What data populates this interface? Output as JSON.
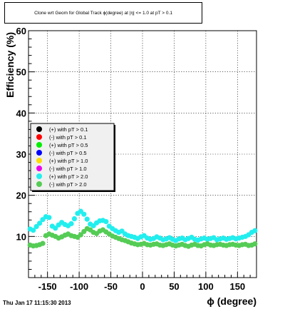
{
  "page": {
    "title": "Clone wrt Geom for Global Track ϕ(degree) at |η| <= 1.0 at pT > 0.1",
    "footer": "Thu Jan 17 11:15:30 2013"
  },
  "colors": {
    "frame": "#000000",
    "grid": "#000000",
    "legend_bg": "#f0f0f0"
  },
  "chart_data": {
    "type": "scatter",
    "xlabel": "ϕ (degree)",
    "ylabel": "Efficiency (%)",
    "xlim": [
      -180,
      180
    ],
    "ylim": [
      0,
      60
    ],
    "xticks": [
      -150,
      -100,
      -50,
      0,
      50,
      100,
      150
    ],
    "xtick_labels": [
      "-150",
      "-100",
      "-50",
      "0",
      "50",
      "100",
      "150"
    ],
    "yticks": [
      10,
      20,
      30,
      40,
      50,
      60
    ],
    "ytick_labels": [
      "10",
      "20",
      "30",
      "40",
      "50",
      "60"
    ],
    "grid": true,
    "legend_position": "left-middle",
    "x": [
      -177.5,
      -172.5,
      -167.5,
      -162.5,
      -157.5,
      -152.5,
      -147.5,
      -142.5,
      -137.5,
      -132.5,
      -127.5,
      -122.5,
      -117.5,
      -112.5,
      -107.5,
      -102.5,
      -97.5,
      -92.5,
      -87.5,
      -82.5,
      -77.5,
      -72.5,
      -67.5,
      -62.5,
      -57.5,
      -52.5,
      -47.5,
      -42.5,
      -37.5,
      -32.5,
      -27.5,
      -22.5,
      -17.5,
      -12.5,
      -7.5,
      -2.5,
      2.5,
      7.5,
      12.5,
      17.5,
      22.5,
      27.5,
      32.5,
      37.5,
      42.5,
      47.5,
      52.5,
      57.5,
      62.5,
      67.5,
      72.5,
      77.5,
      82.5,
      87.5,
      92.5,
      97.5,
      102.5,
      107.5,
      112.5,
      117.5,
      122.5,
      127.5,
      132.5,
      137.5,
      142.5,
      147.5,
      152.5,
      157.5,
      162.5,
      167.5,
      172.5,
      177.5
    ],
    "series": [
      {
        "name": "(+) with pT > 0.1",
        "color": "#000000",
        "values": [
          null,
          null,
          null,
          null,
          null,
          null,
          null,
          null,
          null,
          null,
          null,
          null,
          null,
          null,
          null,
          null,
          null,
          null,
          null,
          null,
          null,
          null,
          null,
          null,
          null,
          null,
          null,
          null,
          null,
          null,
          null,
          null,
          null,
          null,
          null,
          null,
          null,
          null,
          null,
          null,
          null,
          null,
          null,
          null,
          null,
          null,
          null,
          null,
          null,
          null,
          null,
          null,
          null,
          null,
          null,
          null,
          null,
          null,
          null,
          null,
          null,
          null,
          null,
          null,
          null,
          null,
          null,
          null,
          null,
          null,
          null,
          null
        ]
      },
      {
        "name": "(-) with pT > 0.1",
        "color": "#ff0000",
        "values": [
          null,
          null,
          null,
          null,
          null,
          null,
          null,
          null,
          null,
          null,
          null,
          null,
          null,
          null,
          null,
          null,
          null,
          null,
          null,
          null,
          null,
          null,
          null,
          null,
          null,
          null,
          null,
          null,
          null,
          null,
          null,
          null,
          null,
          null,
          null,
          null,
          null,
          null,
          null,
          null,
          null,
          null,
          null,
          null,
          null,
          null,
          null,
          null,
          null,
          null,
          null,
          null,
          null,
          null,
          null,
          null,
          null,
          null,
          null,
          null,
          null,
          null,
          null,
          null,
          null,
          null,
          null,
          null,
          null,
          null,
          null,
          null
        ]
      },
      {
        "name": "(+) with pT > 0.5",
        "color": "#00ee00",
        "values": [
          null,
          null,
          null,
          null,
          null,
          null,
          null,
          null,
          null,
          null,
          null,
          null,
          null,
          null,
          null,
          null,
          null,
          null,
          null,
          null,
          null,
          null,
          null,
          null,
          null,
          null,
          null,
          null,
          null,
          null,
          null,
          null,
          null,
          null,
          null,
          null,
          null,
          null,
          null,
          null,
          null,
          null,
          null,
          null,
          null,
          null,
          null,
          null,
          null,
          null,
          null,
          null,
          null,
          null,
          null,
          null,
          null,
          null,
          null,
          null,
          null,
          null,
          null,
          null,
          null,
          null,
          null,
          null,
          null,
          null,
          null,
          null
        ]
      },
      {
        "name": "(-) with pT > 0.5",
        "color": "#0000ff",
        "values": [
          null,
          null,
          null,
          null,
          null,
          null,
          null,
          null,
          null,
          null,
          null,
          null,
          null,
          null,
          null,
          null,
          null,
          null,
          null,
          null,
          null,
          null,
          null,
          null,
          null,
          null,
          null,
          null,
          null,
          null,
          null,
          null,
          null,
          null,
          null,
          null,
          null,
          null,
          null,
          null,
          null,
          null,
          null,
          null,
          null,
          null,
          null,
          null,
          null,
          null,
          null,
          null,
          null,
          null,
          null,
          null,
          null,
          null,
          null,
          null,
          null,
          null,
          null,
          null,
          null,
          null,
          null,
          null,
          null,
          null,
          null,
          null
        ]
      },
      {
        "name": "(+) with pT > 1.0",
        "color": "#ffdd00",
        "values": [
          null,
          null,
          null,
          null,
          null,
          null,
          null,
          null,
          null,
          null,
          null,
          null,
          null,
          null,
          null,
          null,
          null,
          null,
          null,
          null,
          null,
          null,
          null,
          null,
          null,
          null,
          null,
          null,
          null,
          null,
          null,
          null,
          null,
          null,
          null,
          null,
          null,
          null,
          null,
          null,
          null,
          null,
          null,
          null,
          null,
          null,
          null,
          null,
          null,
          null,
          null,
          null,
          null,
          null,
          null,
          null,
          null,
          null,
          null,
          null,
          null,
          null,
          null,
          null,
          null,
          null,
          null,
          null,
          null,
          null,
          null,
          null
        ]
      },
      {
        "name": "(-) with pT > 1.0",
        "color": "#ee00ee",
        "values": [
          null,
          null,
          null,
          null,
          null,
          null,
          null,
          null,
          null,
          null,
          null,
          null,
          null,
          null,
          null,
          null,
          null,
          null,
          null,
          null,
          null,
          null,
          null,
          null,
          null,
          null,
          null,
          null,
          null,
          null,
          null,
          null,
          null,
          null,
          null,
          null,
          null,
          null,
          null,
          null,
          null,
          null,
          null,
          null,
          null,
          null,
          null,
          null,
          null,
          null,
          null,
          null,
          null,
          null,
          null,
          null,
          null,
          null,
          null,
          null,
          null,
          null,
          null,
          null,
          null,
          null,
          null,
          null,
          null,
          null,
          null,
          null
        ]
      },
      {
        "name": "(+) with pT > 2.0",
        "color": "#22eeee",
        "values": [
          11.8,
          11.5,
          12.4,
          13.2,
          14.1,
          14.8,
          14.6,
          12.5,
          12.0,
          12.8,
          13.4,
          12.9,
          12.6,
          13.1,
          14.3,
          15.6,
          16.1,
          15.4,
          14.2,
          13.0,
          12.6,
          13.3,
          13.8,
          13.9,
          13.6,
          12.5,
          11.9,
          11.4,
          11.0,
          11.3,
          10.6,
          10.2,
          10.0,
          9.8,
          9.5,
          9.9,
          10.2,
          9.6,
          9.3,
          9.5,
          9.9,
          9.6,
          9.2,
          9.4,
          9.7,
          9.3,
          9.0,
          9.4,
          9.6,
          9.2,
          9.5,
          9.8,
          9.3,
          9.1,
          9.4,
          9.6,
          9.3,
          9.5,
          9.7,
          9.2,
          9.4,
          9.6,
          9.3,
          9.5,
          9.7,
          9.4,
          9.6,
          9.8,
          10.0,
          10.4,
          11.0,
          11.4
        ]
      },
      {
        "name": "(-) with pT > 2.0",
        "color": "#55cc55",
        "values": [
          7.9,
          7.7,
          7.8,
          8.0,
          8.3,
          10.2,
          10.6,
          10.3,
          10.0,
          9.6,
          9.9,
          10.3,
          10.6,
          10.2,
          10.0,
          9.8,
          10.4,
          11.2,
          11.9,
          11.6,
          11.0,
          10.7,
          11.3,
          11.6,
          11.1,
          10.6,
          10.1,
          9.8,
          9.5,
          9.2,
          9.0,
          8.7,
          8.4,
          8.2,
          8.0,
          8.1,
          8.3,
          8.0,
          7.9,
          8.1,
          8.2,
          7.9,
          7.8,
          8.0,
          8.2,
          7.9,
          7.7,
          7.9,
          8.1,
          7.8,
          7.6,
          7.9,
          8.1,
          7.8,
          7.7,
          8.0,
          8.2,
          7.9,
          7.8,
          8.0,
          8.1,
          7.9,
          7.8,
          8.0,
          8.1,
          7.9,
          7.8,
          8.0,
          8.1,
          7.8,
          7.9,
          8.2
        ]
      }
    ]
  }
}
